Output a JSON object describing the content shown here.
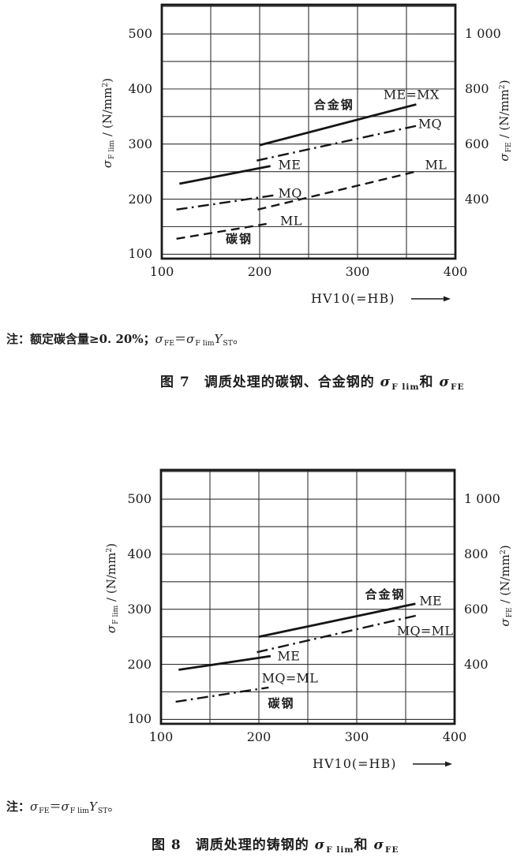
{
  "colors": {
    "paper": "#ffffff",
    "ink": "#1c1c1c",
    "grid": "#333333"
  },
  "figure7": {
    "note_text": "注：额定碳含量≥0. 20%；σFE＝σF limYST。",
    "note_segments": [
      {
        "t": "注：额定碳含量≥0. 20%；",
        "b": 1
      },
      {
        "t": "σ",
        "i": 1
      },
      {
        "t": "FE",
        "sub": 1
      },
      {
        "t": "＝"
      },
      {
        "t": "σ",
        "i": 1
      },
      {
        "t": "F lim",
        "sub": 1
      },
      {
        "t": "Y",
        "i": 1
      },
      {
        "t": "ST",
        "sub": 1
      },
      {
        "t": "。"
      }
    ],
    "caption_text": "图 7　调质处理的碳钢、合金钢的 σF lim和 σFE",
    "caption_segments": [
      {
        "t": "图 7　调质处理的碳钢、合金钢的 ",
        "b": 1
      },
      {
        "t": "σ",
        "i": 1,
        "b": 1
      },
      {
        "t": "F lim",
        "sub": 1,
        "b": 1
      },
      {
        "t": "和 ",
        "b": 1
      },
      {
        "t": "σ",
        "i": 1,
        "b": 1
      },
      {
        "t": "FE",
        "sub": 1,
        "b": 1
      }
    ]
  },
  "figure8": {
    "note_text": "注：σFE＝σF limYST。",
    "note_segments": [
      {
        "t": "注：",
        "b": 1
      },
      {
        "t": "σ",
        "i": 1
      },
      {
        "t": "FE",
        "sub": 1
      },
      {
        "t": "＝"
      },
      {
        "t": "σ",
        "i": 1
      },
      {
        "t": "F lim",
        "sub": 1
      },
      {
        "t": "Y",
        "i": 1
      },
      {
        "t": "ST",
        "sub": 1
      },
      {
        "t": "。"
      }
    ],
    "caption_text": "图 8　调质处理的铸钢的 σF lim和 σFE",
    "caption_segments": [
      {
        "t": "图 8　调质处理的铸钢的 ",
        "b": 1
      },
      {
        "t": "σ",
        "i": 1,
        "b": 1
      },
      {
        "t": "F lim",
        "sub": 1,
        "b": 1
      },
      {
        "t": "和 ",
        "b": 1
      },
      {
        "t": "σ",
        "i": 1,
        "b": 1
      },
      {
        "t": "FE",
        "sub": 1,
        "b": 1
      }
    ]
  },
  "chart_data": [
    {
      "type": "line",
      "title": "图 7 调质处理的碳钢、合金钢的 σF lim 和 σFE",
      "xlabel": "HV10(=HB)",
      "ylabel_left": "σF lim / (N/mm²)",
      "ylabel_right": "σFE / (N/mm²)",
      "ylabel_left_segments": [
        {
          "t": "σ",
          "i": 1
        },
        {
          "t": "F lim",
          "sub": 1
        },
        {
          "t": " / (N/mm"
        },
        {
          "t": "2",
          "sup": 1
        },
        {
          "t": ")"
        }
      ],
      "ylabel_right_segments": [
        {
          "t": "σ",
          "i": 1
        },
        {
          "t": "FE",
          "sub": 1
        },
        {
          "t": " / (N/mm"
        },
        {
          "t": "2",
          "sup": 1
        },
        {
          "t": ")"
        }
      ],
      "x_range": [
        100,
        400
      ],
      "y_range": [
        92,
        553
      ],
      "grid_step": 50,
      "grid": true,
      "x_ticks": [
        {
          "v": 100,
          "label": "100"
        },
        {
          "v": 200,
          "label": "200"
        },
        {
          "v": 300,
          "label": "300"
        },
        {
          "v": 400,
          "label": "400"
        }
      ],
      "y_ticks_left": [
        {
          "v": 100,
          "label": "100"
        },
        {
          "v": 200,
          "label": "200"
        },
        {
          "v": 300,
          "label": "300"
        },
        {
          "v": 400,
          "label": "400"
        },
        {
          "v": 500,
          "label": "500"
        }
      ],
      "y_ticks_right": [
        {
          "v": 200,
          "label": "400"
        },
        {
          "v": 300,
          "label": "600"
        },
        {
          "v": 400,
          "label": "800"
        },
        {
          "v": 500,
          "label": "1 000"
        }
      ],
      "series": [
        {
          "group": "碳钢",
          "group_key": "carbon-steel",
          "name": "ME",
          "style": "solid",
          "points": [
            [
              118,
              228
            ],
            [
              211,
              260
            ]
          ],
          "label": {
            "text": "ME",
            "x": 219,
            "y": 261,
            "align": "start"
          }
        },
        {
          "group": "碳钢",
          "group_key": "carbon-steel",
          "name": "MQ",
          "style": "dashdot",
          "points": [
            [
              115,
              181
            ],
            [
              215,
              207
            ]
          ],
          "label": {
            "text": "MQ",
            "x": 219,
            "y": 210,
            "align": "start"
          }
        },
        {
          "group": "碳钢",
          "group_key": "carbon-steel",
          "name": "ML",
          "style": "dashed",
          "points": [
            [
              115,
              128
            ],
            [
              207,
              155
            ]
          ],
          "label": {
            "text": "ML",
            "x": 221,
            "y": 159,
            "align": "start"
          }
        },
        {
          "group": "合金钢",
          "group_key": "alloy-steel",
          "name": "ME=MX",
          "style": "solid",
          "points": [
            [
              200,
              298
            ],
            [
              360,
              372
            ]
          ],
          "label": {
            "text": "ME=MX",
            "x": 355,
            "y": 388,
            "align": "middle"
          }
        },
        {
          "group": "合金钢",
          "group_key": "alloy-steel",
          "name": "MQ",
          "style": "dashdot",
          "points": [
            [
              197,
              270
            ],
            [
              360,
              333
            ]
          ],
          "label": {
            "text": "MQ",
            "x": 362,
            "y": 336,
            "align": "start"
          }
        },
        {
          "group": "合金钢",
          "group_key": "alloy-steel",
          "name": "ML",
          "style": "dashed",
          "points": [
            [
              198,
              181
            ],
            [
              362,
              251
            ]
          ],
          "label": {
            "text": "ML",
            "x": 369,
            "y": 261,
            "align": "start"
          }
        }
      ],
      "annotations": [
        {
          "text": "合金钢",
          "key": "alloy-steel",
          "x": 276,
          "y": 370
        },
        {
          "text": "碳钢",
          "key": "carbon-steel",
          "x": 179,
          "y": 126
        }
      ]
    },
    {
      "type": "line",
      "title": "图 8 调质处理的铸钢的 σF lim 和 σFE",
      "xlabel": "HV10(=HB)",
      "ylabel_left": "σF lim / (N/mm²)",
      "ylabel_right": "σFE / (N/mm²)",
      "ylabel_left_segments": [
        {
          "t": "σ",
          "i": 1
        },
        {
          "t": "F lim",
          "sub": 1
        },
        {
          "t": " / (N/mm"
        },
        {
          "t": "2",
          "sup": 1
        },
        {
          "t": ")"
        }
      ],
      "ylabel_right_segments": [
        {
          "t": "σ",
          "i": 1
        },
        {
          "t": "FE",
          "sub": 1
        },
        {
          "t": " / (N/mm"
        },
        {
          "t": "2",
          "sup": 1
        },
        {
          "t": ")"
        }
      ],
      "x_range": [
        100,
        400
      ],
      "y_range": [
        92,
        553
      ],
      "grid_step": 50,
      "grid": true,
      "x_ticks": [
        {
          "v": 100,
          "label": "100"
        },
        {
          "v": 200,
          "label": "200"
        },
        {
          "v": 300,
          "label": "300"
        },
        {
          "v": 400,
          "label": "400"
        }
      ],
      "y_ticks_left": [
        {
          "v": 100,
          "label": "100"
        },
        {
          "v": 200,
          "label": "200"
        },
        {
          "v": 300,
          "label": "300"
        },
        {
          "v": 400,
          "label": "400"
        },
        {
          "v": 500,
          "label": "500"
        }
      ],
      "y_ticks_right": [
        {
          "v": 200,
          "label": "400"
        },
        {
          "v": 300,
          "label": "600"
        },
        {
          "v": 400,
          "label": "800"
        },
        {
          "v": 500,
          "label": "1 000"
        }
      ],
      "series": [
        {
          "group": "碳钢",
          "group_key": "carbon-cast-steel",
          "name": "ME",
          "style": "solid",
          "points": [
            [
              118,
              190
            ],
            [
              212,
              215
            ]
          ],
          "label": {
            "text": "ME",
            "x": 219,
            "y": 214,
            "align": "start"
          }
        },
        {
          "group": "碳钢",
          "group_key": "carbon-cast-steel",
          "name": "MQ=ML",
          "style": "dashdot",
          "points": [
            [
              115,
              132
            ],
            [
              210,
              158
            ]
          ],
          "label": {
            "text": "MQ=ML",
            "x": 203,
            "y": 174,
            "align": "start"
          }
        },
        {
          "group": "合金钢",
          "group_key": "alloy-cast-steel",
          "name": "ME",
          "style": "solid",
          "points": [
            [
              200,
              250
            ],
            [
              360,
              310
            ]
          ],
          "label": {
            "text": "ME",
            "x": 364,
            "y": 314,
            "align": "start"
          }
        },
        {
          "group": "合金钢",
          "group_key": "alloy-cast-steel",
          "name": "MQ=ML",
          "style": "dashdot",
          "points": [
            [
              198,
              222
            ],
            [
              362,
              289
            ]
          ],
          "label": {
            "text": "MQ=ML",
            "x": 341,
            "y": 259,
            "align": "start"
          }
        }
      ],
      "annotations": [
        {
          "text": "合金钢",
          "key": "alloy-cast-steel",
          "x": 329,
          "y": 326
        },
        {
          "text": "碳钢",
          "key": "carbon-cast-steel",
          "x": 223,
          "y": 128
        }
      ]
    }
  ]
}
